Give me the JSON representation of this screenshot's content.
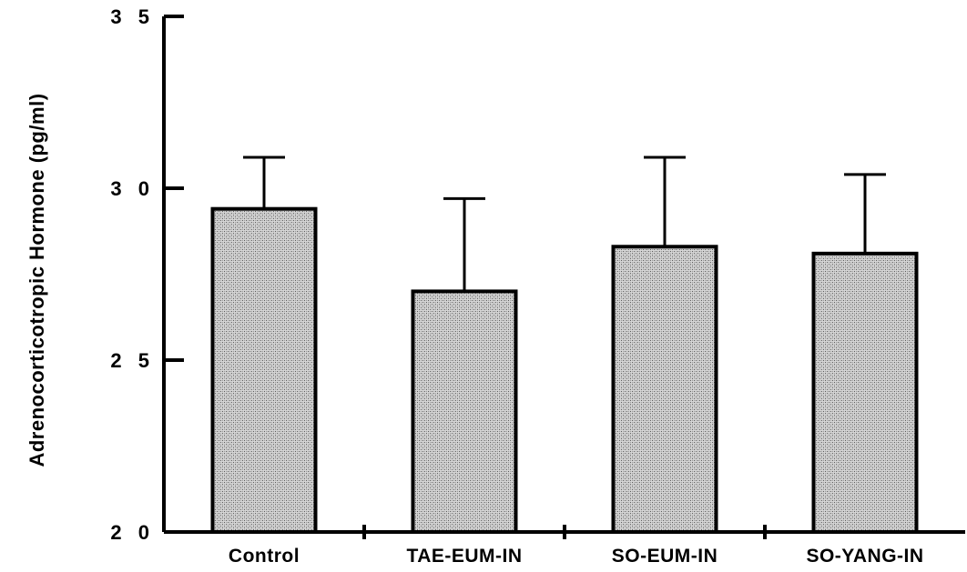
{
  "chart_data": {
    "type": "bar",
    "ylabel": "Adrenocorticotropic Hormone (pg/ml)",
    "xlabel": "",
    "title": "",
    "categories": [
      "Control",
      "TAE-EUM-IN",
      "SO-EUM-IN",
      "SO-YANG-IN"
    ],
    "values": [
      29.4,
      27.0,
      28.3,
      28.1
    ],
    "error_upper": [
      1.5,
      2.7,
      2.6,
      2.3
    ],
    "ylim": [
      20,
      35
    ],
    "yticks": [
      20,
      25,
      30,
      35
    ],
    "ytick_labels": [
      "2 0",
      "2 5",
      "3 0",
      "3 5"
    ],
    "grid": false,
    "bar_fill": "#bdbdbd"
  }
}
